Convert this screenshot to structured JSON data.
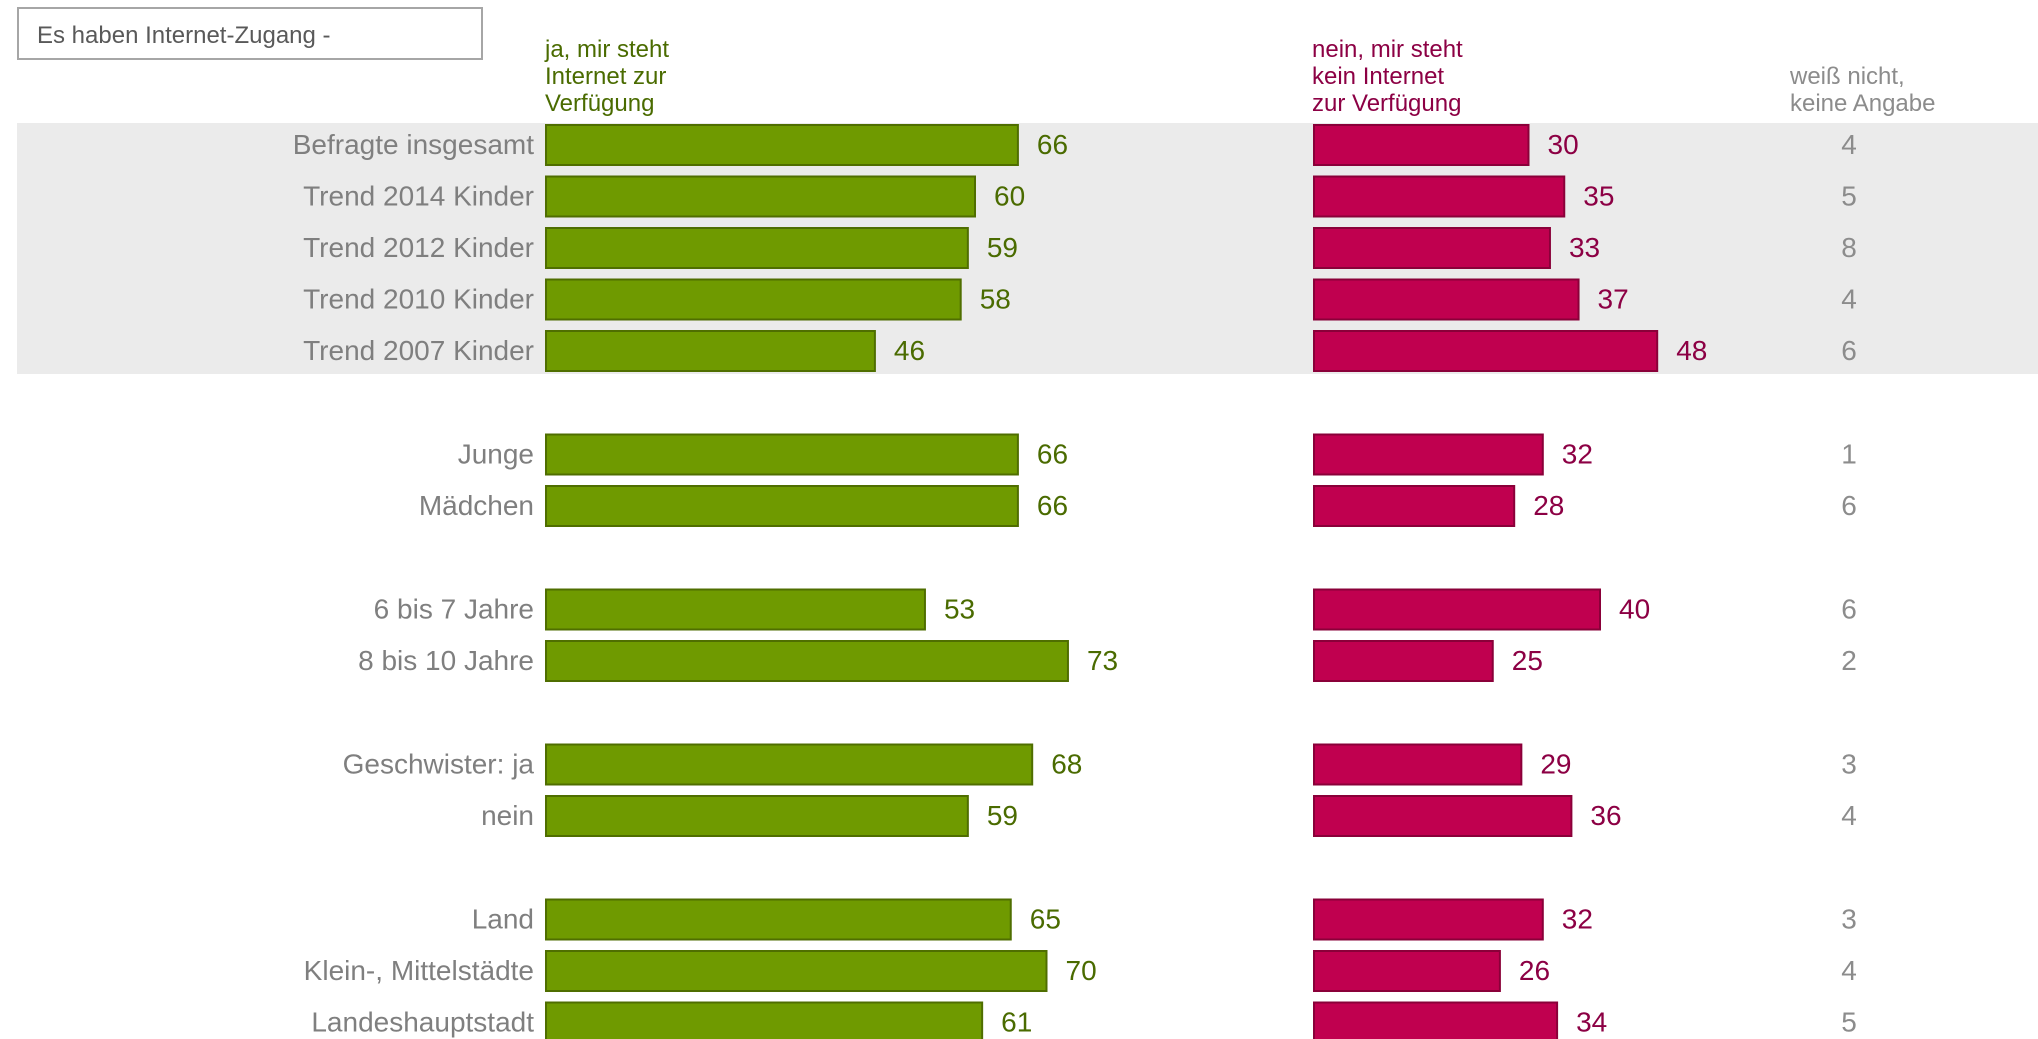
{
  "subtitle": "Es haben Internet-Zugang -",
  "colors": {
    "yes": "#6f9a00",
    "yes_border": "#4f6e00",
    "yes_label": "#4a6b00",
    "no": "#c0004f",
    "no_border": "#8a0039",
    "no_label": "#8c0044",
    "dk_label": "#8c8c8c",
    "category_label": "#7f7f7f",
    "trend_band": "#ebebeb"
  },
  "chart_data": {
    "type": "bar",
    "orientation": "horizontal",
    "unit": "%",
    "categories": [
      "Befragte insgesamt",
      "Trend 2014 Kinder",
      "Trend 2012 Kinder",
      "Trend 2010 Kinder",
      "Trend 2007 Kinder",
      "Junge",
      "Mädchen",
      "6 bis 7 Jahre",
      "8 bis 10 Jahre",
      "Geschwister: ja",
      "nein",
      "Land",
      "Klein-, Mittelstädte",
      "Landeshauptstadt"
    ],
    "groups": [
      [
        0,
        4
      ],
      [
        5,
        6
      ],
      [
        7,
        8
      ],
      [
        9,
        10
      ],
      [
        11,
        13
      ]
    ],
    "highlighted_rows": [
      0,
      1,
      2,
      3,
      4
    ],
    "series": [
      {
        "name": "ja, mir steht\nInternet zur\nVerfügung",
        "values": [
          66,
          60,
          59,
          58,
          46,
          66,
          66,
          53,
          73,
          68,
          59,
          65,
          70,
          61
        ]
      },
      {
        "name": "nein, mir steht\nkein Internet\nzur Verfügung",
        "values": [
          30,
          35,
          33,
          37,
          48,
          32,
          28,
          40,
          25,
          29,
          36,
          32,
          26,
          34
        ]
      },
      {
        "name": "weiß nicht,\nkeine Angabe",
        "values": [
          4,
          5,
          8,
          4,
          6,
          1,
          6,
          6,
          2,
          3,
          4,
          3,
          4,
          5
        ]
      }
    ]
  }
}
